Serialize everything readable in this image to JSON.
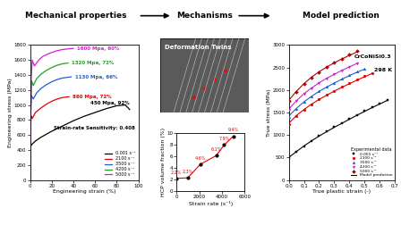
{
  "headers": [
    "Mechanical properties",
    "Mechanisms",
    "Model prediction"
  ],
  "image": {
    "label": "Deformation Twins"
  },
  "chart_data": [
    {
      "type": "line",
      "x_label": "Engineering strain (%)",
      "y_label": "Engineering stress (MPa)",
      "xlim": [
        0,
        100
      ],
      "ylim": [
        0,
        1800
      ],
      "xticks": [
        0,
        20,
        40,
        60,
        80,
        100
      ],
      "yticks": [
        0,
        200,
        400,
        600,
        800,
        1000,
        1200,
        1400,
        1600,
        1800
      ],
      "legend": "lower right",
      "annotations": [
        "Strain-rate Sensitivity: 0.408"
      ],
      "series": [
        {
          "name": "0.001 s⁻¹",
          "color": "#000000",
          "annotation": "450 Mpa, 92%",
          "x": [
            0,
            0.5,
            2,
            5,
            10,
            20,
            30,
            40,
            50,
            60,
            70,
            80,
            88,
            92
          ],
          "values": [
            0,
            450,
            480,
            520,
            570,
            650,
            720,
            790,
            850,
            900,
            950,
            990,
            1000,
            940
          ]
        },
        {
          "name": "2100 s⁻¹",
          "color": "#e00000",
          "annotation": "860 Mpa, 72%",
          "x": [
            0,
            0.5,
            1,
            2,
            5,
            10,
            15,
            20,
            25,
            30,
            36
          ],
          "values": [
            0,
            700,
            860,
            820,
            900,
            960,
            1010,
            1050,
            1080,
            1100,
            1110
          ]
        },
        {
          "name": "3500 s⁻¹",
          "color": "#1f5fd0",
          "annotation": "1130 Mpa, 66%",
          "x": [
            0,
            0.6,
            1.2,
            3,
            6,
            10,
            15,
            20,
            25,
            30,
            35,
            38
          ],
          "values": [
            0,
            900,
            1130,
            1080,
            1160,
            1220,
            1270,
            1310,
            1340,
            1360,
            1370,
            1375
          ]
        },
        {
          "name": "4200 s⁻¹",
          "color": "#22a022",
          "annotation": "1320 Mpa, 72%",
          "x": [
            0,
            0.8,
            1.5,
            3,
            6,
            10,
            15,
            20,
            25,
            30,
            35
          ],
          "values": [
            0,
            1100,
            1320,
            1260,
            1350,
            1410,
            1460,
            1500,
            1530,
            1550,
            1560
          ]
        },
        {
          "name": "5000 s⁻¹",
          "color": "#d020d0",
          "annotation": "1600 Mpa, 60%",
          "x": [
            0,
            1,
            2,
            4,
            8,
            12,
            18,
            24,
            30,
            36,
            40
          ],
          "values": [
            0,
            1350,
            1600,
            1520,
            1600,
            1650,
            1690,
            1720,
            1740,
            1750,
            1755
          ]
        }
      ]
    },
    {
      "type": "line",
      "x_label": "Strain rate (s⁻¹)",
      "y_label": "HCP volume fraction (%)",
      "xlim": [
        0,
        6000
      ],
      "ylim": [
        0,
        10
      ],
      "xticks": [
        0,
        2000,
        4000,
        6000
      ],
      "yticks": [
        0,
        2,
        4,
        6,
        8,
        10
      ],
      "color": "#e00000",
      "marker": "circle",
      "data_labels": true,
      "x": [
        0.001,
        1000,
        2100,
        3500,
        4200,
        5000
      ],
      "values": [
        2.2,
        2.3,
        4.6,
        6.1,
        7.9,
        9.4
      ],
      "value_labels": [
        "2.2%",
        "2.3%",
        "4.6%",
        "6.1%",
        "7.9%",
        "9.4%"
      ]
    },
    {
      "type": "line",
      "x_label": "True plastic strain (-)",
      "y_label": "True stress (MPa)",
      "xlim": [
        0,
        0.7
      ],
      "ylim": [
        0,
        3000
      ],
      "xticks": [
        0.0,
        0.1,
        0.2,
        0.3,
        0.4,
        0.5,
        0.6,
        0.7
      ],
      "yticks": [
        0,
        500,
        1000,
        1500,
        2000,
        2500,
        3000
      ],
      "legend": "lower right",
      "legend_title": "Experimental data",
      "model_label": "Model prediction",
      "annotations": [
        "CrCoNiSi0.3",
        "298 K"
      ],
      "series": [
        {
          "type": "scatter",
          "name": "0.001 s⁻¹",
          "color": "#000000",
          "marker": "square",
          "x": [
            0,
            0.05,
            0.1,
            0.15,
            0.2,
            0.25,
            0.3,
            0.35,
            0.4,
            0.45,
            0.5,
            0.55,
            0.6,
            0.65
          ],
          "values": [
            480,
            620,
            750,
            870,
            980,
            1080,
            1180,
            1270,
            1360,
            1450,
            1540,
            1620,
            1700,
            1780
          ]
        },
        {
          "type": "scatter",
          "name": "2100 s⁻¹",
          "color": "#e00000",
          "marker": "circle",
          "x": [
            0,
            0.05,
            0.1,
            0.15,
            0.2,
            0.25,
            0.3,
            0.35,
            0.4,
            0.45,
            0.5,
            0.55
          ],
          "values": [
            1250,
            1420,
            1560,
            1680,
            1790,
            1890,
            1980,
            2070,
            2150,
            2230,
            2310,
            2380
          ]
        },
        {
          "type": "scatter",
          "name": "3500 s⁻¹",
          "color": "#1f5fd0",
          "marker": "triangle_up",
          "x": [
            0,
            0.05,
            0.1,
            0.15,
            0.2,
            0.25,
            0.3,
            0.35,
            0.4,
            0.45,
            0.5
          ],
          "values": [
            1400,
            1580,
            1730,
            1860,
            1970,
            2070,
            2160,
            2250,
            2330,
            2410,
            2480
          ]
        },
        {
          "type": "scatter",
          "name": "4200 s⁻¹",
          "color": "#d020d0",
          "marker": "triangle_down",
          "x": [
            0,
            0.05,
            0.1,
            0.15,
            0.2,
            0.25,
            0.3,
            0.35,
            0.4,
            0.45
          ],
          "values": [
            1550,
            1750,
            1910,
            2040,
            2160,
            2260,
            2350,
            2440,
            2520,
            2600
          ]
        },
        {
          "type": "scatter",
          "name": "5000 s⁻¹",
          "color": "#b00000",
          "marker": "diamond",
          "x": [
            0,
            0.05,
            0.1,
            0.15,
            0.2,
            0.25,
            0.3,
            0.35,
            0.4,
            0.45
          ],
          "values": [
            1750,
            1960,
            2130,
            2280,
            2400,
            2510,
            2610,
            2700,
            2780,
            2860
          ]
        },
        {
          "type": "line",
          "color": "#000000",
          "x": [
            0,
            0.05,
            0.1,
            0.15,
            0.2,
            0.25,
            0.3,
            0.35,
            0.4,
            0.45,
            0.5,
            0.55,
            0.6,
            0.65
          ],
          "values": [
            500,
            630,
            755,
            870,
            975,
            1075,
            1170,
            1260,
            1350,
            1440,
            1525,
            1610,
            1690,
            1770
          ]
        },
        {
          "type": "line",
          "color": "#e00000",
          "x": [
            0,
            0.05,
            0.1,
            0.15,
            0.2,
            0.25,
            0.3,
            0.35,
            0.4,
            0.45,
            0.5,
            0.55
          ],
          "values": [
            1260,
            1430,
            1565,
            1685,
            1790,
            1885,
            1975,
            2060,
            2140,
            2220,
            2295,
            2370
          ]
        },
        {
          "type": "line",
          "color": "#1f5fd0",
          "x": [
            0,
            0.05,
            0.1,
            0.15,
            0.2,
            0.25,
            0.3,
            0.35,
            0.4,
            0.45,
            0.5
          ],
          "values": [
            1420,
            1590,
            1735,
            1860,
            1970,
            2065,
            2155,
            2240,
            2320,
            2395,
            2465
          ]
        },
        {
          "type": "line",
          "color": "#d020d0",
          "x": [
            0,
            0.05,
            0.1,
            0.15,
            0.2,
            0.25,
            0.3,
            0.35,
            0.4,
            0.45
          ],
          "values": [
            1570,
            1760,
            1915,
            2045,
            2160,
            2260,
            2350,
            2435,
            2515,
            2590
          ]
        },
        {
          "type": "line",
          "color": "#b00000",
          "x": [
            0,
            0.05,
            0.1,
            0.15,
            0.2,
            0.25,
            0.3,
            0.35,
            0.4,
            0.45
          ],
          "values": [
            1770,
            1970,
            2140,
            2285,
            2405,
            2510,
            2605,
            2690,
            2770,
            2845
          ]
        }
      ]
    }
  ]
}
